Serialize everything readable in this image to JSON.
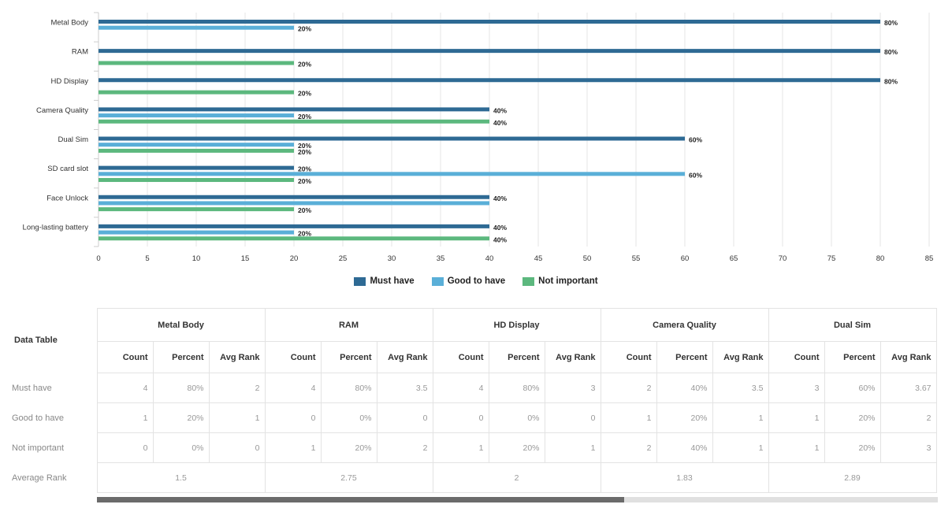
{
  "chart_data": {
    "type": "bar",
    "orientation": "horizontal",
    "categories": [
      "Metal Body",
      "RAM",
      "HD Display",
      "Camera Quality",
      "Dual Sim",
      "SD card slot",
      "Face Unlock",
      "Long-lasting battery"
    ],
    "series": [
      {
        "name": "Must have",
        "color": "#2e6a94",
        "values": [
          80,
          80,
          80,
          40,
          60,
          20,
          40,
          40
        ],
        "labels": [
          "80%",
          "80%",
          "80%",
          "40%",
          "60%",
          "20%",
          "40%",
          "40%"
        ]
      },
      {
        "name": "Good to have",
        "color": "#5aafd8",
        "values": [
          20,
          0,
          0,
          20,
          20,
          60,
          40,
          20
        ],
        "labels": [
          "20%",
          "",
          "",
          "20%",
          "20%",
          "60%",
          "",
          "20%"
        ]
      },
      {
        "name": "Not important",
        "color": "#5cb87e",
        "values": [
          0,
          20,
          20,
          40,
          20,
          20,
          20,
          40
        ],
        "labels": [
          "",
          "20%",
          "20%",
          "40%",
          "20%",
          "20%",
          "20%",
          "40%"
        ]
      }
    ],
    "xlim": [
      0,
      85
    ],
    "x_ticks": [
      "0",
      "5",
      "10",
      "15",
      "20",
      "25",
      "30",
      "35",
      "40",
      "45",
      "50",
      "55",
      "60",
      "65",
      "70",
      "75",
      "80",
      "85"
    ],
    "grid": true,
    "legend_position": "bottom-center"
  },
  "legend": [
    {
      "label": "Must have",
      "color": "#2e6a94"
    },
    {
      "label": "Good to have",
      "color": "#5aafd8"
    },
    {
      "label": "Not important",
      "color": "#5cb87e"
    }
  ],
  "data_table": {
    "title": "Data Table",
    "sub_headers": [
      "Count",
      "Percent",
      "Avg Rank"
    ],
    "groups": [
      "Metal Body",
      "RAM",
      "HD Display",
      "Camera Quality",
      "Dual Sim"
    ],
    "rows": [
      {
        "label": "Must have",
        "cells": [
          "4",
          "80%",
          "2",
          "4",
          "80%",
          "3.5",
          "4",
          "80%",
          "3",
          "2",
          "40%",
          "3.5",
          "3",
          "60%",
          "3.67"
        ]
      },
      {
        "label": "Good to have",
        "cells": [
          "1",
          "20%",
          "1",
          "0",
          "0%",
          "0",
          "0",
          "0%",
          "0",
          "1",
          "20%",
          "1",
          "1",
          "20%",
          "2"
        ]
      },
      {
        "label": "Not important",
        "cells": [
          "0",
          "0%",
          "0",
          "1",
          "20%",
          "2",
          "1",
          "20%",
          "1",
          "2",
          "40%",
          "1",
          "1",
          "20%",
          "3"
        ]
      }
    ],
    "average_rank": {
      "label": "Average Rank",
      "values": [
        "1.5",
        "2.75",
        "2",
        "1.83",
        "2.89"
      ]
    }
  },
  "scrollbar": {
    "visible_fraction": 0.627
  }
}
